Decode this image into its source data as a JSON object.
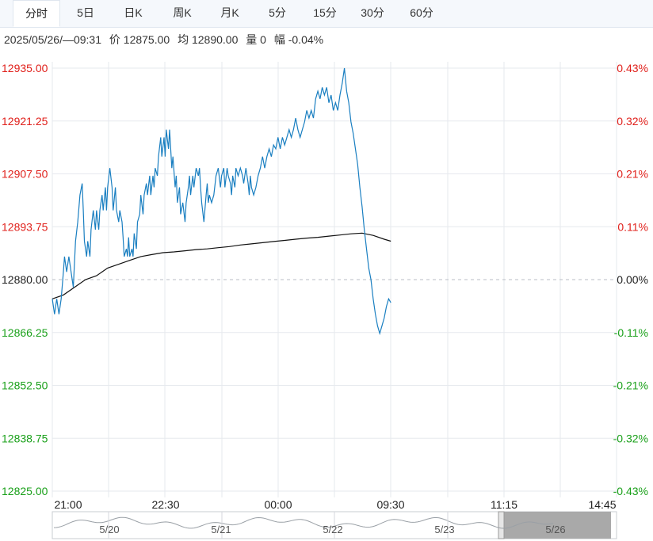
{
  "tabs": [
    {
      "label": "分时",
      "active": true
    },
    {
      "label": "5日",
      "active": false
    },
    {
      "label": "日K",
      "active": false
    },
    {
      "label": "周K",
      "active": false
    },
    {
      "label": "月K",
      "active": false
    },
    {
      "label": "5分",
      "active": false
    },
    {
      "label": "15分",
      "active": false
    },
    {
      "label": "30分",
      "active": false
    },
    {
      "label": "60分",
      "active": false
    }
  ],
  "info": {
    "datetime": "2025/05/26/—09:31",
    "price": "价 12875.00",
    "avg": "均 12890.00",
    "volume": "量 0",
    "change": "幅 -0.04%"
  },
  "colors": {
    "up": "#e0201b",
    "down": "#1aa01a",
    "neutral": "#222222",
    "price_line": "#1a7fc1",
    "avg_line": "#111111",
    "grid": "#e6e9ee"
  },
  "chart_data": {
    "type": "line",
    "ylim": [
      12825.0,
      12935.0
    ],
    "baseline": 12880.0,
    "left_ticks": [
      "12935.00",
      "12921.25",
      "12907.50",
      "12893.75",
      "12880.00",
      "12866.25",
      "12852.50",
      "12838.75",
      "12825.00"
    ],
    "right_ticks": [
      "0.43%",
      "0.32%",
      "0.21%",
      "0.11%",
      "0.00%",
      "-0.11%",
      "-0.21%",
      "-0.32%",
      "-0.43%"
    ],
    "x_ticks": [
      "21:00",
      "22:30",
      "00:00",
      "09:30",
      "11:15",
      "14:45"
    ],
    "price_series": {
      "name": "价",
      "points": [
        [
          0,
          12875.0
        ],
        [
          2,
          12871.0
        ],
        [
          4,
          12875.0
        ],
        [
          6,
          12871.0
        ],
        [
          8,
          12875.0
        ],
        [
          10,
          12882.0
        ],
        [
          11,
          12886.0
        ],
        [
          13,
          12882.0
        ],
        [
          15,
          12886.0
        ],
        [
          17,
          12882.0
        ],
        [
          19,
          12878.0
        ],
        [
          21,
          12890.0
        ],
        [
          23,
          12895.0
        ],
        [
          25,
          12902.0
        ],
        [
          27,
          12905.0
        ],
        [
          28,
          12898.0
        ],
        [
          29,
          12890.0
        ],
        [
          31,
          12886.0
        ],
        [
          32,
          12890.0
        ],
        [
          34,
          12886.0
        ],
        [
          35,
          12893.0
        ],
        [
          37,
          12898.0
        ],
        [
          39,
          12893.0
        ],
        [
          40,
          12898.0
        ],
        [
          42,
          12893.0
        ],
        [
          43,
          12898.0
        ],
        [
          45,
          12902.0
        ],
        [
          46,
          12898.0
        ],
        [
          48,
          12904.0
        ],
        [
          49,
          12898.0
        ],
        [
          50,
          12904.0
        ],
        [
          52,
          12909.0
        ],
        [
          54,
          12904.0
        ],
        [
          55,
          12898.0
        ],
        [
          57,
          12904.0
        ],
        [
          58,
          12898.0
        ],
        [
          60,
          12895.0
        ],
        [
          61,
          12898.0
        ],
        [
          63,
          12895.0
        ],
        [
          64,
          12891.0
        ],
        [
          65,
          12886.0
        ],
        [
          67,
          12888.0
        ],
        [
          68,
          12886.0
        ],
        [
          69,
          12891.0
        ],
        [
          70,
          12886.0
        ],
        [
          72,
          12888.0
        ],
        [
          73,
          12886.0
        ],
        [
          74,
          12892.0
        ],
        [
          76,
          12888.0
        ],
        [
          77,
          12895.0
        ],
        [
          79,
          12897.0
        ],
        [
          80,
          12902.0
        ],
        [
          82,
          12897.0
        ],
        [
          83,
          12902.0
        ],
        [
          85,
          12905.0
        ],
        [
          86,
          12902.0
        ],
        [
          88,
          12907.0
        ],
        [
          89,
          12902.0
        ],
        [
          91,
          12907.0
        ],
        [
          92,
          12904.0
        ],
        [
          93,
          12909.0
        ],
        [
          95,
          12907.0
        ],
        [
          96,
          12912.0
        ],
        [
          98,
          12917.0
        ],
        [
          99,
          12912.0
        ],
        [
          101,
          12917.0
        ],
        [
          102,
          12912.0
        ],
        [
          103,
          12919.0
        ],
        [
          105,
          12914.0
        ],
        [
          106,
          12919.0
        ],
        [
          108,
          12909.0
        ],
        [
          109,
          12912.0
        ],
        [
          111,
          12904.0
        ],
        [
          112,
          12907.0
        ],
        [
          113,
          12900.0
        ],
        [
          115,
          12904.0
        ],
        [
          116,
          12897.0
        ],
        [
          118,
          12900.0
        ],
        [
          120,
          12895.0
        ],
        [
          121,
          12900.0
        ],
        [
          123,
          12904.0
        ],
        [
          124,
          12907.0
        ],
        [
          125,
          12902.0
        ],
        [
          127,
          12907.0
        ],
        [
          128,
          12904.0
        ],
        [
          130,
          12909.0
        ],
        [
          132,
          12907.0
        ],
        [
          133,
          12909.0
        ],
        [
          134,
          12904.0
        ],
        [
          135,
          12900.0
        ],
        [
          137,
          12895.0
        ],
        [
          139,
          12902.0
        ],
        [
          140,
          12905.0
        ],
        [
          141,
          12900.0
        ],
        [
          142,
          12902.0
        ],
        [
          144,
          12900.0
        ],
        [
          146,
          12902.0
        ],
        [
          148,
          12907.0
        ],
        [
          150,
          12909.0
        ],
        [
          152,
          12904.0
        ],
        [
          153,
          12907.0
        ],
        [
          155,
          12909.0
        ],
        [
          156,
          12904.0
        ],
        [
          158,
          12909.0
        ],
        [
          159,
          12907.0
        ],
        [
          161,
          12905.0
        ],
        [
          162,
          12902.0
        ],
        [
          163,
          12907.0
        ],
        [
          165,
          12904.0
        ],
        [
          166,
          12909.0
        ],
        [
          168,
          12907.0
        ],
        [
          170,
          12909.0
        ],
        [
          172,
          12907.0
        ],
        [
          173,
          12905.0
        ],
        [
          175,
          12909.0
        ],
        [
          177,
          12905.0
        ],
        [
          178,
          12902.0
        ],
        [
          179,
          12907.0
        ],
        [
          180,
          12904.0
        ],
        [
          182,
          12902.0
        ],
        [
          184,
          12904.0
        ],
        [
          186,
          12907.0
        ],
        [
          188,
          12909.0
        ],
        [
          190,
          12912.0
        ],
        [
          192,
          12909.0
        ],
        [
          194,
          12912.0
        ],
        [
          196,
          12914.0
        ],
        [
          198,
          12912.0
        ],
        [
          200,
          12915.0
        ],
        [
          202,
          12914.0
        ],
        [
          204,
          12917.0
        ],
        [
          206,
          12914.0
        ],
        [
          208,
          12917.0
        ],
        [
          210,
          12915.0
        ],
        [
          212,
          12917.0
        ],
        [
          214,
          12919.0
        ],
        [
          216,
          12917.0
        ],
        [
          218,
          12919.0
        ],
        [
          220,
          12922.0
        ],
        [
          222,
          12919.0
        ],
        [
          224,
          12917.0
        ],
        [
          226,
          12919.0
        ],
        [
          228,
          12921.0
        ],
        [
          230,
          12924.0
        ],
        [
          232,
          12922.0
        ],
        [
          234,
          12924.0
        ],
        [
          236,
          12922.0
        ],
        [
          238,
          12927.0
        ],
        [
          240,
          12929.0
        ],
        [
          242,
          12927.0
        ],
        [
          244,
          12930.0
        ],
        [
          246,
          12928.0
        ],
        [
          248,
          12930.0
        ],
        [
          250,
          12926.0
        ],
        [
          252,
          12928.0
        ],
        [
          254,
          12924.0
        ],
        [
          256,
          12926.0
        ],
        [
          258,
          12924.0
        ],
        [
          260,
          12928.0
        ],
        [
          262,
          12931.0
        ],
        [
          264,
          12935.0
        ],
        [
          266,
          12929.0
        ],
        [
          268,
          12926.0
        ],
        [
          270,
          12921.0
        ],
        [
          272,
          12918.0
        ],
        [
          274,
          12914.0
        ],
        [
          276,
          12910.0
        ],
        [
          278,
          12904.0
        ],
        [
          280,
          12899.0
        ],
        [
          282,
          12893.0
        ],
        [
          284,
          12888.0
        ],
        [
          286,
          12883.0
        ],
        [
          288,
          12880.0
        ],
        [
          290,
          12875.0
        ],
        [
          292,
          12871.0
        ],
        [
          294,
          12868.0
        ],
        [
          296,
          12866.0
        ],
        [
          298,
          12868.0
        ],
        [
          300,
          12870.0
        ],
        [
          302,
          12873.0
        ],
        [
          304,
          12875.0
        ],
        [
          306,
          12874.0
        ]
      ]
    },
    "avg_series": {
      "name": "均",
      "points": [
        [
          0,
          12875.0
        ],
        [
          10,
          12876.0
        ],
        [
          20,
          12878.0
        ],
        [
          30,
          12880.0
        ],
        [
          40,
          12881.0
        ],
        [
          50,
          12883.0
        ],
        [
          60,
          12884.0
        ],
        [
          70,
          12885.0
        ],
        [
          80,
          12886.0
        ],
        [
          90,
          12886.5
        ],
        [
          100,
          12887.0
        ],
        [
          110,
          12887.2
        ],
        [
          120,
          12887.5
        ],
        [
          130,
          12887.8
        ],
        [
          140,
          12888.0
        ],
        [
          150,
          12888.3
        ],
        [
          160,
          12888.6
        ],
        [
          170,
          12889.0
        ],
        [
          180,
          12889.3
        ],
        [
          190,
          12889.6
        ],
        [
          200,
          12889.9
        ],
        [
          210,
          12890.2
        ],
        [
          220,
          12890.5
        ],
        [
          230,
          12890.8
        ],
        [
          240,
          12891.0
        ],
        [
          250,
          12891.3
        ],
        [
          260,
          12891.6
        ],
        [
          270,
          12891.9
        ],
        [
          280,
          12892.1
        ],
        [
          290,
          12891.5
        ],
        [
          300,
          12890.5
        ],
        [
          306,
          12890.0
        ]
      ]
    },
    "x_domain": [
      0,
      510
    ],
    "navigator": {
      "labels": [
        "5/20",
        "5/21",
        "5/22",
        "5/23",
        "5/26"
      ]
    }
  }
}
